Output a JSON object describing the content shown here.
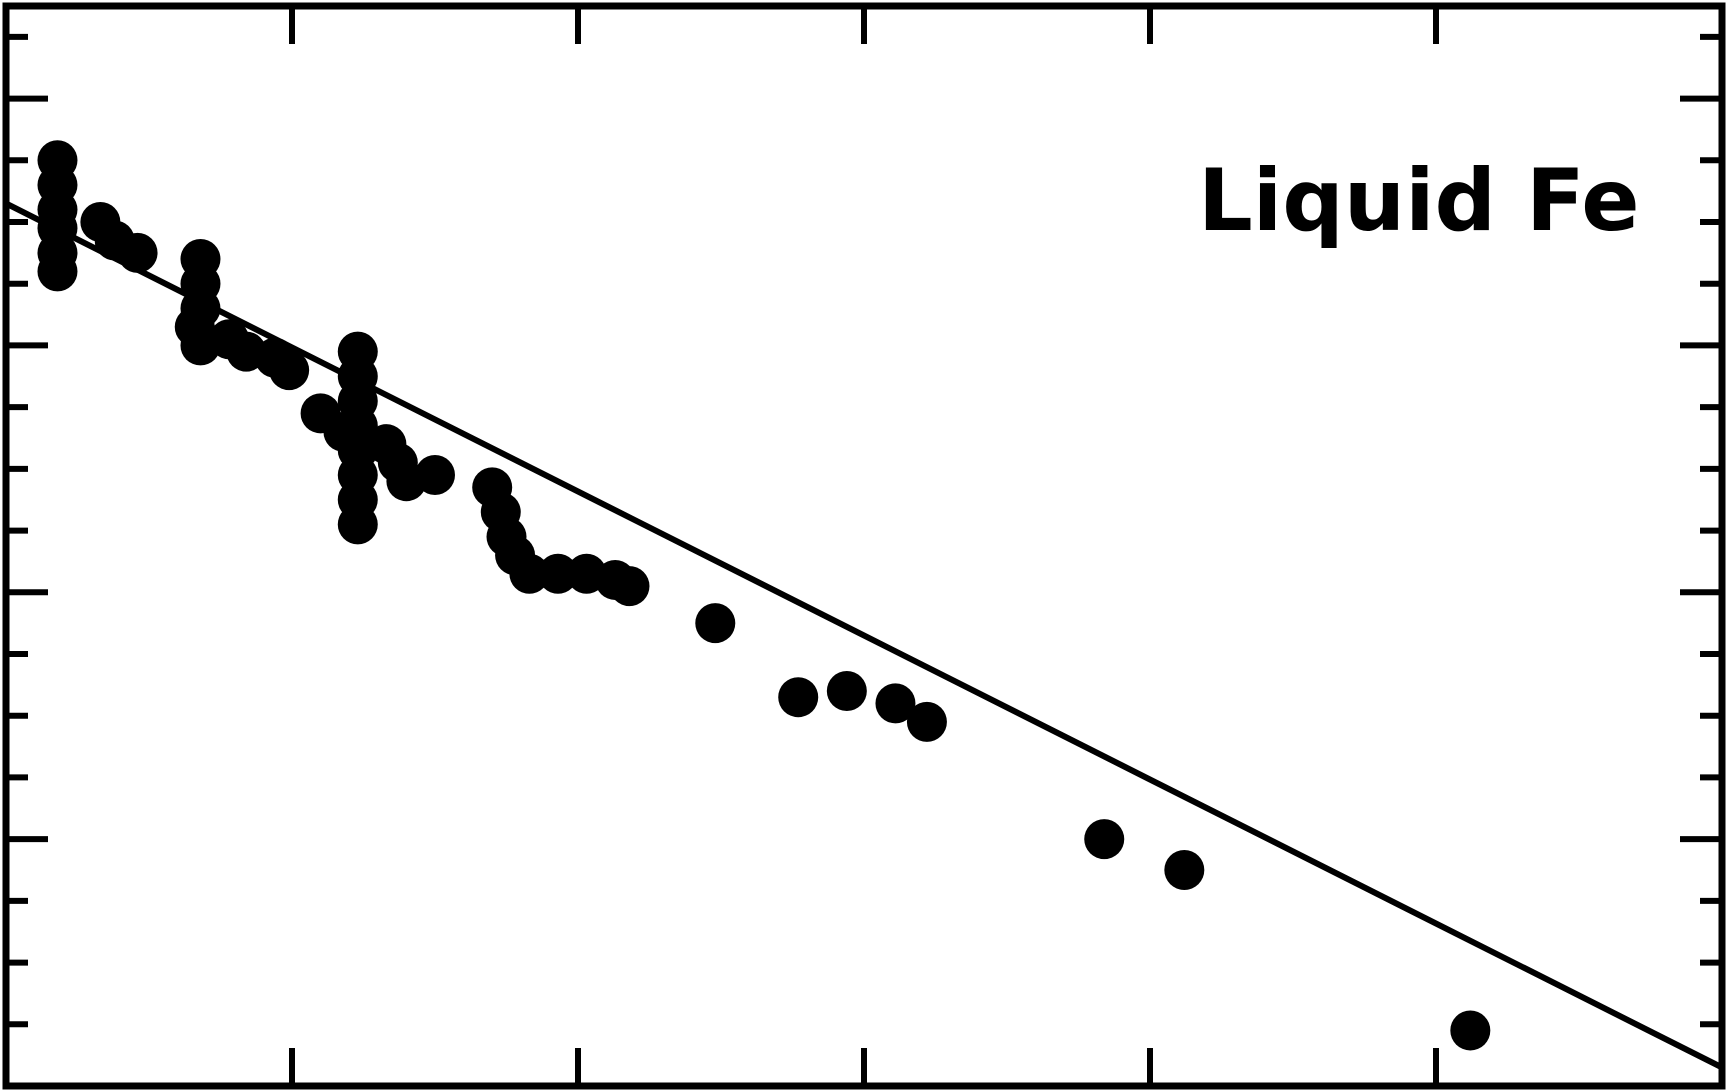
{
  "chart_data": {
    "type": "scatter",
    "title": "",
    "xlabel": "",
    "ylabel": "",
    "xlim": [
      0,
      6
    ],
    "ylim": [
      0,
      17.5
    ],
    "x_major_ticks": [
      0,
      1,
      2,
      3,
      4,
      5,
      6
    ],
    "x_minor_ticks": [],
    "y_major_ticks": [
      0,
      4,
      8,
      12,
      16
    ],
    "y_minor_ticks": [
      1,
      2,
      3,
      5,
      6,
      7,
      9,
      10,
      11,
      13,
      14,
      15,
      17
    ],
    "grid": false,
    "legend": "none",
    "annotation": {
      "text": "Liquid Fe",
      "position": "top-right"
    },
    "fit_line": {
      "x": [
        0,
        6
      ],
      "y": [
        14.3,
        0.3
      ]
    },
    "series": [
      {
        "points": [
          [
            0.18,
            15.0
          ],
          [
            0.18,
            14.6
          ],
          [
            0.18,
            14.2
          ],
          [
            0.18,
            13.9
          ],
          [
            0.18,
            13.5
          ],
          [
            0.18,
            13.2
          ],
          [
            0.33,
            14.0
          ],
          [
            0.38,
            13.7
          ],
          [
            0.46,
            13.5
          ],
          [
            0.68,
            13.4
          ],
          [
            0.68,
            13.0
          ],
          [
            0.68,
            12.6
          ],
          [
            0.66,
            12.3
          ],
          [
            0.68,
            12.0
          ],
          [
            0.78,
            12.1
          ],
          [
            0.84,
            11.9
          ],
          [
            0.94,
            11.8
          ],
          [
            0.99,
            11.6
          ],
          [
            1.1,
            10.9
          ],
          [
            1.18,
            10.6
          ],
          [
            1.23,
            11.9
          ],
          [
            1.23,
            11.5
          ],
          [
            1.23,
            11.1
          ],
          [
            1.23,
            10.7
          ],
          [
            1.23,
            10.3
          ],
          [
            1.23,
            9.9
          ],
          [
            1.23,
            9.5
          ],
          [
            1.23,
            9.1
          ],
          [
            1.33,
            10.4
          ],
          [
            1.37,
            10.1
          ],
          [
            1.4,
            9.8
          ],
          [
            1.5,
            9.9
          ],
          [
            1.7,
            9.7
          ],
          [
            1.73,
            9.3
          ],
          [
            1.75,
            8.9
          ],
          [
            1.78,
            8.6
          ],
          [
            1.83,
            8.3
          ],
          [
            1.93,
            8.3
          ],
          [
            2.03,
            8.3
          ],
          [
            2.13,
            8.2
          ],
          [
            2.18,
            8.1
          ],
          [
            2.48,
            7.5
          ],
          [
            2.77,
            6.3
          ],
          [
            2.94,
            6.4
          ],
          [
            3.11,
            6.2
          ],
          [
            3.22,
            5.9
          ],
          [
            3.84,
            4.0
          ],
          [
            4.12,
            3.5
          ],
          [
            5.12,
            0.9
          ]
        ]
      }
    ]
  }
}
